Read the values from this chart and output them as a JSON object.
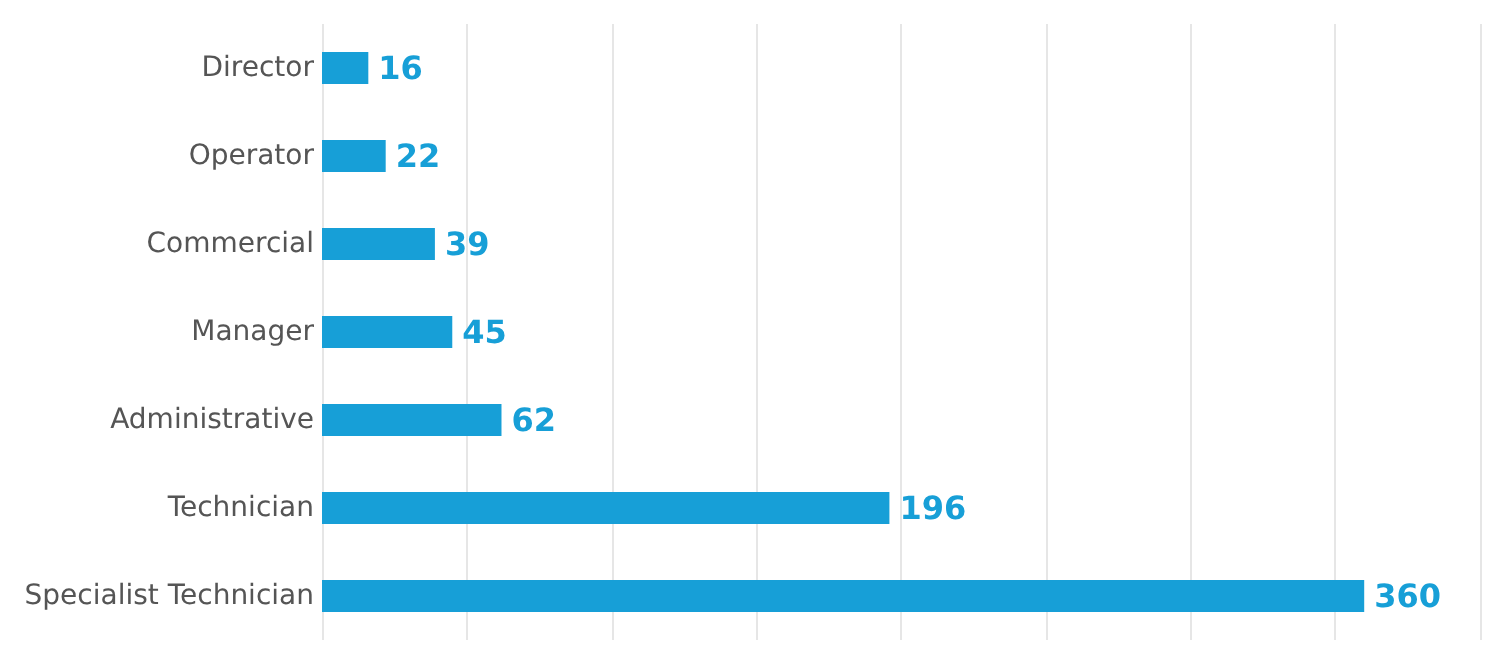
{
  "chart_data": {
    "type": "bar",
    "orientation": "horizontal",
    "categories": [
      "Director",
      "Operator",
      "Commercial",
      "Manager",
      "Administrative",
      "Technician",
      "Specialist Technician"
    ],
    "values": [
      16,
      22,
      39,
      45,
      62,
      196,
      360
    ],
    "color": "#179fd7",
    "xlim": [
      0,
      400
    ],
    "xticks": [
      {
        "value": 0,
        "label": null
      },
      {
        "value": 50,
        "label": null
      },
      {
        "value": 100,
        "label": null
      },
      {
        "value": 150,
        "label": null
      },
      {
        "value": 200,
        "label": null
      },
      {
        "value": 250,
        "label": null
      },
      {
        "value": 300,
        "label": null
      },
      {
        "value": 350,
        "label": null
      },
      {
        "value": 400,
        "label": null
      }
    ],
    "grid": "x",
    "tick_labels": "y",
    "data_labels": true
  }
}
